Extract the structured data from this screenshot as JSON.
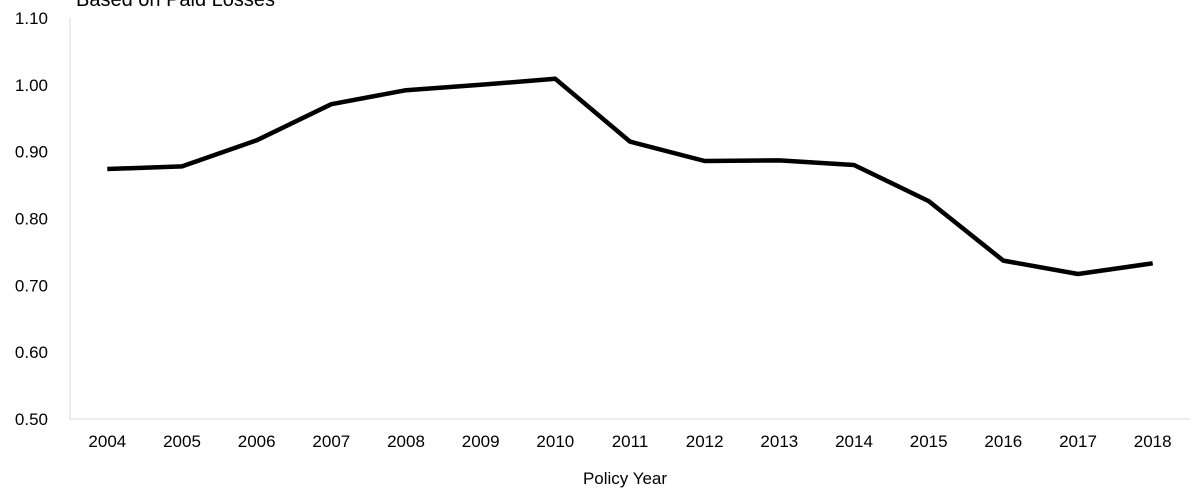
{
  "chart_data": {
    "type": "line",
    "title": "Based on Paid Losses",
    "xlabel": "Policy Year",
    "ylabel": "",
    "x": [
      "2004",
      "2005",
      "2006",
      "2007",
      "2008",
      "2009",
      "2010",
      "2011",
      "2012",
      "2013",
      "2014",
      "2015",
      "2016",
      "2017",
      "2018"
    ],
    "series": [
      {
        "values": [
          0.874,
          0.878,
          0.917,
          0.971,
          0.992,
          1.0,
          1.009,
          0.915,
          0.886,
          0.887,
          0.88,
          0.826,
          0.737,
          0.717,
          0.733
        ]
      }
    ],
    "ylim": [
      0.5,
      1.1
    ],
    "yticks": [
      "0.50",
      "0.60",
      "0.70",
      "0.80",
      "0.90",
      "1.00",
      "1.10"
    ],
    "grid": false,
    "line_color": "#000000",
    "axis_color": "#d9d9d9"
  }
}
